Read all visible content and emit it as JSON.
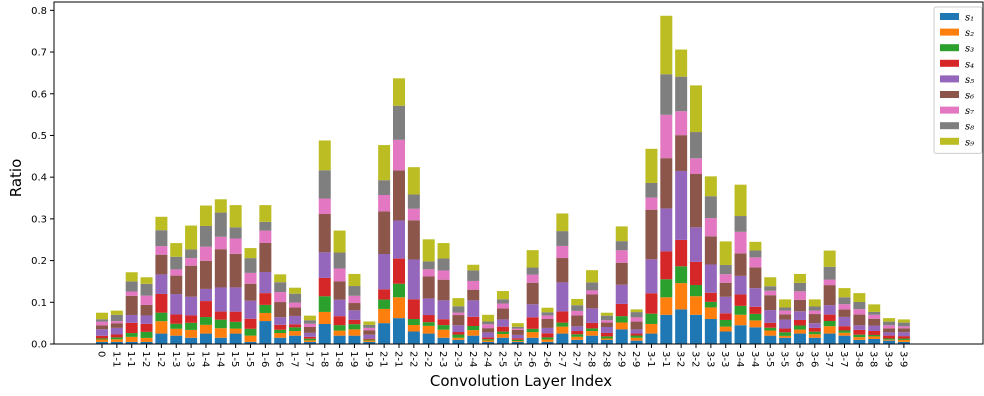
{
  "chart_data": {
    "type": "bar",
    "stacked": true,
    "title": "",
    "xlabel": "Convolution Layer Index",
    "ylabel": "Ratio",
    "ylim": [
      0,
      0.82
    ],
    "yticks": [
      "0.0",
      "0.1",
      "0.2",
      "0.3",
      "0.4",
      "0.5",
      "0.6",
      "0.7",
      "0.8"
    ],
    "ytick_values": [
      0,
      0.1,
      0.2,
      0.3,
      0.4,
      0.5,
      0.6,
      0.7,
      0.8
    ],
    "grid": false,
    "legend_position": "top-right",
    "categories": [
      "0",
      "1-1",
      "1-1",
      "1-2",
      "1-2",
      "1-3",
      "1-3",
      "1-4",
      "1-4",
      "1-5",
      "1-5",
      "1-6",
      "1-6",
      "1-7",
      "1-7",
      "1-8",
      "1-8",
      "1-9",
      "1-9",
      "2-1",
      "2-1",
      "2-2",
      "2-2",
      "2-3",
      "2-3",
      "2-4",
      "2-4",
      "2-5",
      "2-5",
      "2-6",
      "2-6",
      "2-7",
      "2-7",
      "2-8",
      "2-8",
      "2-9",
      "2-9",
      "3-1",
      "3-1",
      "3-2",
      "3-2",
      "3-3",
      "3-3",
      "3-4",
      "3-4",
      "3-5",
      "3-5",
      "3-6",
      "3-6",
      "3-7",
      "3-7",
      "3-8",
      "3-8",
      "3-9",
      "3-9"
    ],
    "totals": [
      0.075,
      0.08,
      0.172,
      0.16,
      0.305,
      0.242,
      0.284,
      0.332,
      0.347,
      0.333,
      0.23,
      0.333,
      0.167,
      0.135,
      0.068,
      0.488,
      0.272,
      0.168,
      0.054,
      0.477,
      0.637,
      0.424,
      0.251,
      0.242,
      0.11,
      0.19,
      0.07,
      0.127,
      0.05,
      0.225,
      0.087,
      0.313,
      0.108,
      0.177,
      0.075,
      0.282,
      0.083,
      0.468,
      0.787,
      0.706,
      0.62,
      0.402,
      0.246,
      0.382,
      0.245,
      0.16,
      0.107,
      0.168,
      0.107,
      0.224,
      0.134,
      0.122,
      0.095,
      0.062,
      0.059
    ],
    "s1_values": [
      0.005,
      0.005,
      0.005,
      0.005,
      0.025,
      0.02,
      0.015,
      0.025,
      0.015,
      0.025,
      0.005,
      0.055,
      0.015,
      0.02,
      0.005,
      0.048,
      0.02,
      0.02,
      0.005,
      0.05,
      0.062,
      0.03,
      0.025,
      0.015,
      0.01,
      0.02,
      0.005,
      0.015,
      0.005,
      0.015,
      0.005,
      0.025,
      0.01,
      0.02,
      0.01,
      0.035,
      0.008,
      0.025,
      0.07,
      0.083,
      0.07,
      0.06,
      0.03,
      0.045,
      0.04,
      0.02,
      0.015,
      0.025,
      0.015,
      0.025,
      0.02,
      0.01,
      0.012,
      0.008,
      0.005
    ],
    "series_names": [
      "s1",
      "s2",
      "s3",
      "s4",
      "s5",
      "s6",
      "s7",
      "s8",
      "s9"
    ],
    "series_labels": [
      "s₁",
      "s₂",
      "s₃",
      "s₄",
      "s₅",
      "s₆",
      "s₇",
      "s₈",
      "s₉"
    ],
    "series_colors": [
      "#1f77b4",
      "#ff7f0e",
      "#2ca02c",
      "#d62728",
      "#9467bd",
      "#8c564b",
      "#e377c2",
      "#7f7f7f",
      "#bcbd22"
    ],
    "other_series_shares": [
      0.07,
      0.06,
      0.1,
      0.18,
      0.2,
      0.1,
      0.13,
      0.16
    ]
  }
}
